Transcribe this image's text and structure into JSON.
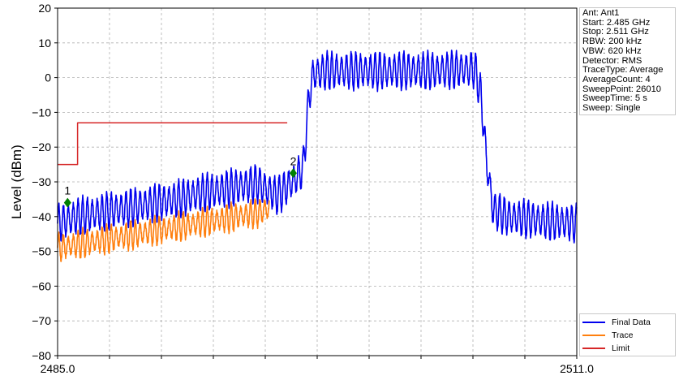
{
  "chart_data": {
    "type": "line",
    "title": "",
    "xlabel": "",
    "ylabel": "Level (dBm)",
    "xlim": [
      2485.0,
      2511.0
    ],
    "ylim": [
      -80,
      20
    ],
    "x_tick_labels": [
      "2485.0",
      "2511.0"
    ],
    "y_ticks": [
      20,
      10,
      0,
      -10,
      -20,
      -30,
      -40,
      -50,
      -60,
      -70,
      -80
    ],
    "y_tick_labels": [
      "20",
      "10",
      "0",
      "−10",
      "−20",
      "−30",
      "−40",
      "−50",
      "−60",
      "−70",
      "−80"
    ],
    "grid": true,
    "legend_position": "bottom-right",
    "series": [
      {
        "name": "Final Data",
        "color": "#0000ee",
        "points": [
          [
            2485.0,
            -42.0
          ],
          [
            2486.0,
            -40.0
          ],
          [
            2487.0,
            -39.0
          ],
          [
            2488.0,
            -38.0
          ],
          [
            2489.0,
            -37.0
          ],
          [
            2490.0,
            -36.0
          ],
          [
            2491.0,
            -35.0
          ],
          [
            2492.0,
            -33.5
          ],
          [
            2493.0,
            -32.5
          ],
          [
            2494.0,
            -31.5
          ],
          [
            2495.0,
            -30.5
          ],
          [
            2496.0,
            -34.0
          ],
          [
            2496.4,
            -32.0
          ],
          [
            2496.9,
            -29.0
          ],
          [
            2497.3,
            -26.0
          ],
          [
            2497.45,
            -15.0
          ],
          [
            2497.6,
            -5.0
          ],
          [
            2497.8,
            1.0
          ],
          [
            2498.5,
            2.0
          ],
          [
            2500.0,
            2.0
          ],
          [
            2502.0,
            2.0
          ],
          [
            2504.0,
            2.0
          ],
          [
            2505.9,
            2.5
          ],
          [
            2506.2,
            -5.0
          ],
          [
            2506.5,
            -25.0
          ],
          [
            2506.8,
            -38.0
          ],
          [
            2507.5,
            -40.0
          ],
          [
            2509.0,
            -41.0
          ],
          [
            2511.0,
            -42.0
          ]
        ],
        "ripple_amplitude_db": 4.5,
        "ripple_period_mhz": 0.24
      },
      {
        "name": "Trace",
        "color": "#ff7f0e",
        "points": [
          [
            2485.0,
            -49.0
          ],
          [
            2486.0,
            -48.0
          ],
          [
            2487.0,
            -47.0
          ],
          [
            2488.0,
            -46.0
          ],
          [
            2489.0,
            -45.0
          ],
          [
            2490.0,
            -44.0
          ],
          [
            2491.0,
            -43.0
          ],
          [
            2492.0,
            -42.0
          ],
          [
            2493.0,
            -41.0
          ],
          [
            2494.0,
            -40.0
          ],
          [
            2495.0,
            -39.0
          ],
          [
            2495.6,
            -37.5
          ]
        ],
        "ripple_amplitude_db": 3.2,
        "ripple_period_mhz": 0.24
      },
      {
        "name": "Limit",
        "color": "#d62728",
        "points": [
          [
            2485.0,
            -25.0
          ],
          [
            2486.0,
            -25.0
          ],
          [
            2486.0,
            -13.0
          ],
          [
            2496.5,
            -13.0
          ]
        ]
      }
    ],
    "markers": [
      {
        "label": "1",
        "x": 2485.5,
        "y": -36.0,
        "color": "#008000"
      },
      {
        "label": "2",
        "x": 2496.8,
        "y": -27.5,
        "color": "#008000"
      }
    ]
  },
  "info_panel": {
    "lines": [
      "Ant: Ant1",
      "Start: 2.485 GHz",
      "Stop: 2.511 GHz",
      "RBW: 200 kHz",
      "VBW: 620 kHz",
      "Detector: RMS",
      "TraceType: Average",
      "AverageCount: 4",
      "SweepPoint: 26010",
      "SweepTime: 5 s",
      "Sweep: Single"
    ]
  }
}
